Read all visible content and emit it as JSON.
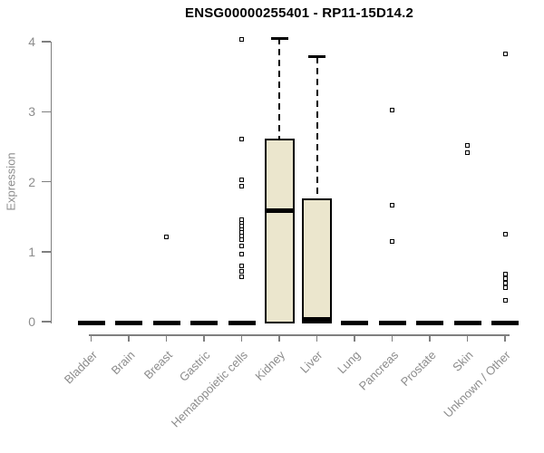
{
  "colors": {
    "box_fill": "#EBE6CD",
    "box_stroke": "#000000",
    "median": "#000000",
    "axis": "#7f7f7f",
    "tick_text": "#8c8c8c",
    "title_text": "#000000",
    "background": "#ffffff"
  },
  "chart_data": {
    "type": "boxplot",
    "title": "ENSG00000255401 - RP11-15D14.2",
    "xlabel": "",
    "ylabel": "Expression",
    "ylim": [
      0,
      4
    ],
    "yticks": [
      "0",
      "1",
      "2",
      "3",
      "4"
    ],
    "grid": false,
    "legend": "none",
    "categories": [
      "Bladder",
      "Brain",
      "Breast",
      "Gastric",
      "Hematopoietic cells",
      "Kidney",
      "Liver",
      "Lung",
      "Pancreas",
      "Prostate",
      "Skin",
      "Unknown / Other"
    ],
    "series": [
      {
        "category": "Bladder",
        "type": "flat",
        "median": 0,
        "outliers": []
      },
      {
        "category": "Brain",
        "type": "flat",
        "median": 0,
        "outliers": []
      },
      {
        "category": "Breast",
        "type": "flat",
        "median": 0,
        "outliers": [
          1.21
        ]
      },
      {
        "category": "Gastric",
        "type": "flat",
        "median": 0,
        "outliers": []
      },
      {
        "category": "Hematopoietic cells",
        "type": "flat",
        "median": 0,
        "outliers": [
          4.03,
          2.61,
          2.03,
          1.93,
          1.45,
          1.41,
          1.36,
          1.31,
          1.27,
          1.22,
          1.17,
          1.08,
          0.97,
          0.8,
          0.72,
          0.64
        ]
      },
      {
        "category": "Kidney",
        "type": "box",
        "q1": 0,
        "median": 1.58,
        "q3": 2.61,
        "whisker_low": 0,
        "whisker_high": 4.05,
        "outliers": []
      },
      {
        "category": "Liver",
        "type": "box",
        "q1": 0,
        "median": 0.03,
        "q3": 1.76,
        "whisker_low": 0,
        "whisker_high": 3.78,
        "outliers": []
      },
      {
        "category": "Lung",
        "type": "flat",
        "median": 0,
        "outliers": []
      },
      {
        "category": "Pancreas",
        "type": "flat",
        "median": 0,
        "outliers": [
          3.02,
          1.66,
          1.14
        ]
      },
      {
        "category": "Prostate",
        "type": "flat",
        "median": 0,
        "outliers": []
      },
      {
        "category": "Skin",
        "type": "flat",
        "median": 0,
        "outliers": [
          2.52,
          2.42
        ]
      },
      {
        "category": "Unknown / Other",
        "type": "flat",
        "median": 0,
        "outliers": [
          3.83,
          1.25,
          0.68,
          0.62,
          0.55,
          0.48,
          0.3
        ]
      }
    ]
  }
}
